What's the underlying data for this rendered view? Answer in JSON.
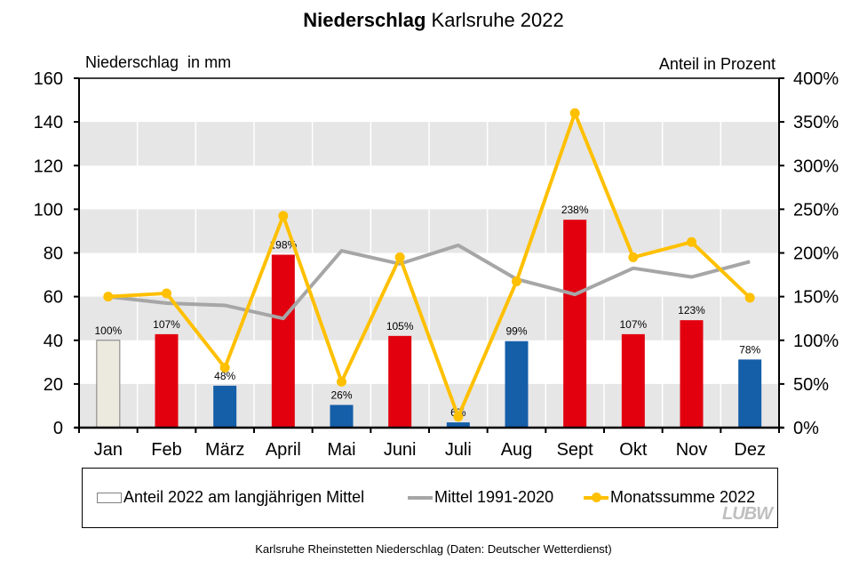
{
  "title": {
    "bold": "Niederschlag",
    "rest": " Karlsruhe 2022"
  },
  "axis_left_title": "Niederschlag  in mm",
  "axis_right_title": "Anteil in Prozent",
  "legend": {
    "bar": "Anteil 2022 am langjährigen Mittel",
    "gray": "Mittel 1991-2020",
    "yellow": "Monatssumme 2022"
  },
  "logo": "LUBW",
  "footer": "Karlsruhe Rheinstetten Niederschlag (Daten: Deutscher Wetterdienst)",
  "colors": {
    "above": "#e2000f",
    "below": "#155ea8",
    "normal": "#ece9df",
    "mean_line": "#a6a6a6",
    "sum_line": "#ffc000",
    "band": "#e6e6e6"
  },
  "chart_data": {
    "type": "bar",
    "title": "Niederschlag Karlsruhe 2022",
    "categories": [
      "Jan",
      "Feb",
      "März",
      "April",
      "Mai",
      "Juni",
      "Juli",
      "Aug",
      "Sept",
      "Okt",
      "Nov",
      "Dez"
    ],
    "ylabel": "Niederschlag  in mm",
    "y2label": "Anteil in Prozent",
    "ylim": [
      0,
      160
    ],
    "y2lim": [
      0,
      400
    ],
    "yticks": [
      0,
      20,
      40,
      60,
      80,
      100,
      120,
      140,
      160
    ],
    "y2ticks": [
      "0%",
      "50%",
      "100%",
      "150%",
      "200%",
      "250%",
      "300%",
      "350%",
      "400%"
    ],
    "grid": "alternating horizontal bands",
    "legend_position": "bottom",
    "series": [
      {
        "name": "Anteil 2022 am langjährigen Mittel",
        "type": "bar",
        "axis": "right",
        "unit": "%",
        "values": [
          100,
          107,
          48,
          198,
          26,
          105,
          6,
          99,
          238,
          107,
          123,
          78
        ],
        "labels": [
          "100%",
          "107%",
          "48%",
          "198%",
          "26%",
          "105%",
          "6%",
          "99%",
          "238%",
          "107%",
          "123%",
          "78%"
        ],
        "bar_colors": [
          "normal",
          "above",
          "below",
          "above",
          "below",
          "above",
          "below",
          "below",
          "above",
          "above",
          "above",
          "below"
        ]
      },
      {
        "name": "Mittel 1991-2020",
        "type": "line",
        "axis": "left",
        "unit": "mm",
        "values": [
          60,
          57,
          56,
          50,
          81,
          75,
          83.5,
          68,
          61,
          73,
          69,
          76
        ]
      },
      {
        "name": "Monatssumme 2022",
        "type": "line",
        "axis": "left",
        "unit": "mm",
        "values": [
          60,
          61.5,
          27.5,
          97,
          21,
          78,
          5,
          67,
          144,
          78,
          85,
          59.5
        ]
      }
    ]
  }
}
